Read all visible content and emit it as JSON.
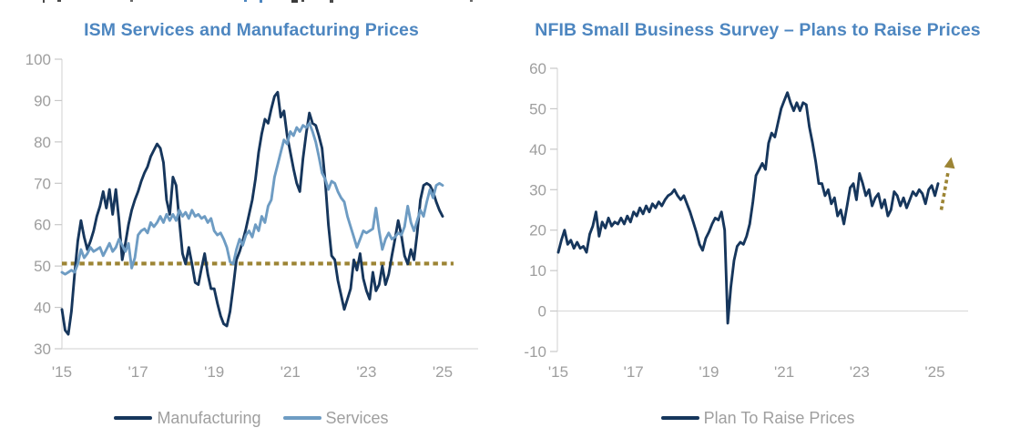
{
  "style": {
    "background": "#ffffff",
    "axis_color": "#d9d9d9",
    "tick_color": "#c8c8c8",
    "tick_label_color": "#9e9e9e",
    "legend_text_color": "#9f9f9f",
    "accent_gold": "#9c8434"
  },
  "chart_data": [
    {
      "type": "line",
      "title": "ISM Services and Manufacturing Prices",
      "title_color": "#4d86c0",
      "x_tick_labels": [
        "'15",
        "'17",
        "'19",
        "'21",
        "'23",
        "'25"
      ],
      "x_start_year": 2015,
      "points_per_year": 12,
      "ylim": [
        30,
        100
      ],
      "y_ticks": [
        100,
        90,
        80,
        70,
        60,
        50,
        40,
        30
      ],
      "grid": "off",
      "legend_position": "bottom",
      "reference_line": {
        "value": 50.6,
        "style": "dotted",
        "color": "#9c8434"
      },
      "series": [
        {
          "name": "Manufacturing",
          "color": "#16365c",
          "values": [
            39.5,
            34.5,
            33.5,
            39,
            48,
            56,
            61,
            57,
            54,
            56,
            58.5,
            62,
            64.5,
            68,
            64,
            68.5,
            62.5,
            68.5,
            61,
            51.5,
            55.5,
            60,
            63.5,
            66,
            68,
            70.5,
            72.5,
            74,
            76.5,
            78,
            79.5,
            78.5,
            75,
            66,
            62.5,
            71.5,
            69.5,
            61,
            53,
            50.5,
            54.5,
            50.5,
            46,
            45.5,
            49.5,
            53,
            48,
            44.5,
            44.5,
            41,
            38,
            36,
            35.5,
            39,
            45,
            51.5,
            53.5,
            56,
            59,
            62.5,
            66,
            71,
            77.5,
            82,
            85.5,
            84.5,
            88,
            91,
            92,
            86,
            87.5,
            81.5,
            77.5,
            73.5,
            70,
            68,
            76,
            82,
            87,
            84.5,
            84,
            81.5,
            78.5,
            70.5,
            60,
            52.5,
            51.5,
            46.5,
            43,
            39.5,
            42,
            44.5,
            51.5,
            49,
            53,
            47,
            44,
            42,
            48.5,
            44,
            45.5,
            50,
            45.5,
            48,
            52.5,
            56.5,
            61,
            57.5,
            52.5,
            50.5,
            54,
            51.5,
            58,
            66,
            69.5,
            70,
            69.5,
            68,
            65.5,
            63.5,
            62
          ]
        },
        {
          "name": "Services",
          "color": "#6e9cc3",
          "values": [
            48.5,
            48,
            48.5,
            49,
            48.5,
            50.5,
            54,
            52,
            53,
            54.5,
            53.5,
            54,
            54.5,
            52.5,
            54,
            55.5,
            53.5,
            54.5,
            56.5,
            55,
            53.5,
            55.5,
            49.5,
            52,
            57.5,
            58.5,
            59,
            58,
            60.5,
            59.5,
            60.5,
            62,
            60.5,
            62.5,
            61,
            62.5,
            61,
            63.5,
            62,
            63,
            61.5,
            63.5,
            62,
            62.5,
            61.5,
            62,
            60.5,
            61.5,
            58.5,
            57.5,
            58,
            56.5,
            54.5,
            51,
            50.5,
            54,
            56.5,
            55,
            57.5,
            58.5,
            57,
            60,
            58.5,
            62,
            60.5,
            64.5,
            66,
            71.5,
            74.5,
            77.5,
            80.5,
            79.5,
            82.5,
            81.5,
            83.5,
            82.5,
            84,
            83.5,
            84.5,
            82.5,
            80,
            76.5,
            72.5,
            71,
            68.5,
            70.5,
            70,
            68,
            66.5,
            65.5,
            62,
            59.5,
            57,
            54.5,
            56.5,
            58.5,
            58,
            58.5,
            59,
            64,
            58.5,
            54,
            56.5,
            58,
            56.5,
            57,
            58,
            57.5,
            59.5,
            64.5,
            60.5,
            58.5,
            61,
            63.5,
            62,
            65.5,
            68.5,
            66.5,
            69.5,
            70,
            69.5
          ]
        }
      ]
    },
    {
      "type": "line",
      "title": "NFIB Small Business Survey – Plans to Raise Prices",
      "title_color": "#4d86c0",
      "x_tick_labels": [
        "'15",
        "'17",
        "'19",
        "'21",
        "'23",
        "'25"
      ],
      "x_start_year": 2015,
      "points_per_year": 12,
      "ylim": [
        -10,
        60
      ],
      "y_ticks": [
        60,
        50,
        40,
        30,
        20,
        10,
        0,
        -10
      ],
      "grid": "off",
      "zero_gridline": true,
      "legend_position": "bottom",
      "annotation_arrow": {
        "style": "dashed",
        "color": "#9c8434",
        "direction": "up",
        "from_value": 25,
        "to_value": 38
      },
      "series": [
        {
          "name": "Plan To Raise Prices",
          "color": "#16365c",
          "values": [
            14.5,
            17.5,
            20,
            16.5,
            17.5,
            15.5,
            17,
            15.5,
            16,
            14.5,
            19,
            21,
            24.5,
            18.5,
            22,
            20.5,
            23,
            21,
            22,
            21.5,
            23,
            21.5,
            23.5,
            22,
            24.5,
            23.5,
            25.5,
            24,
            26,
            24.5,
            26.5,
            25.5,
            27,
            26,
            27.5,
            28.5,
            29,
            30,
            28.5,
            27.5,
            28.5,
            26.5,
            24.5,
            22,
            19.5,
            16.5,
            15,
            18,
            19.5,
            21.5,
            23,
            22.5,
            24.5,
            20,
            -3,
            6,
            12.5,
            16,
            17,
            16.5,
            18.5,
            21.5,
            27,
            33.5,
            35,
            36.5,
            35,
            41.5,
            44,
            43,
            46.5,
            50,
            52,
            54,
            51.5,
            49.5,
            51.5,
            49.5,
            51.5,
            51,
            45.5,
            41.5,
            37,
            31.5,
            31.5,
            28.5,
            30,
            26.5,
            28,
            23.5,
            25,
            21.5,
            26,
            30.5,
            31.5,
            27.5,
            34,
            31.5,
            28.5,
            30,
            26,
            28,
            29,
            25.5,
            27.5,
            23.5,
            25,
            29.5,
            28.5,
            26,
            28,
            25.5,
            27.5,
            29.5,
            28.5,
            30,
            29,
            26.5,
            30,
            31,
            28.5,
            31.5
          ]
        }
      ]
    }
  ]
}
